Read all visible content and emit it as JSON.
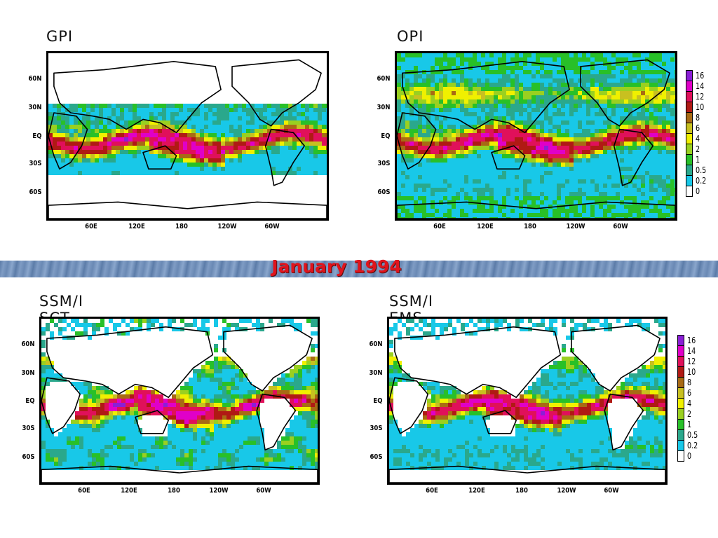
{
  "banner": {
    "title": "January 1994"
  },
  "panels": [
    {
      "title": "GPI"
    },
    {
      "title": "OPI"
    },
    {
      "title": "SSM/I SCT"
    },
    {
      "title": "SSM/I EMS"
    }
  ],
  "lat_labels": [
    "60N",
    "30N",
    "EQ",
    "30S",
    "60S"
  ],
  "lon_labels": [
    "60E",
    "120E",
    "180",
    "120W",
    "60W"
  ],
  "legend": {
    "labels": [
      "16",
      "14",
      "12",
      "10",
      "8",
      "6",
      "4",
      "2",
      "1",
      "0.5",
      "0.2",
      "0"
    ],
    "colors": [
      "#8a1fd6",
      "#e000c8",
      "#e0105a",
      "#b01a14",
      "#a86a14",
      "#c8c020",
      "#f0f000",
      "#9ad020",
      "#28c028",
      "#2aa88c",
      "#18c8e8",
      "#ffffff"
    ]
  }
}
